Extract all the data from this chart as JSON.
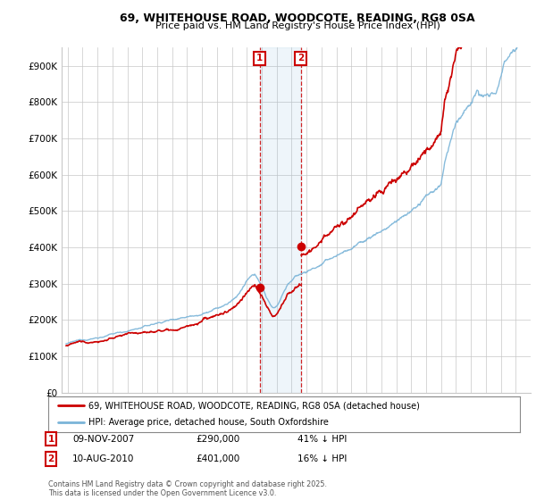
{
  "title_line1": "69, WHITEHOUSE ROAD, WOODCOTE, READING, RG8 0SA",
  "title_line2": "Price paid vs. HM Land Registry's House Price Index (HPI)",
  "ylim": [
    0,
    950000
  ],
  "yticks": [
    0,
    100000,
    200000,
    300000,
    400000,
    500000,
    600000,
    700000,
    800000,
    900000
  ],
  "ytick_labels": [
    "£0",
    "£100K",
    "£200K",
    "£300K",
    "£400K",
    "£500K",
    "£600K",
    "£700K",
    "£800K",
    "£900K"
  ],
  "hpi_color": "#7ab4d8",
  "price_color": "#cc0000",
  "transaction1_date": 2007.86,
  "transaction1_price": 290000,
  "transaction2_date": 2010.61,
  "transaction2_price": 401000,
  "legend_line1": "69, WHITEHOUSE ROAD, WOODCOTE, READING, RG8 0SA (detached house)",
  "legend_line2": "HPI: Average price, detached house, South Oxfordshire",
  "annotation1_label": "1",
  "annotation1_date": "09-NOV-2007",
  "annotation1_price": "£290,000",
  "annotation1_hpi": "41% ↓ HPI",
  "annotation2_label": "2",
  "annotation2_date": "10-AUG-2010",
  "annotation2_price": "£401,000",
  "annotation2_hpi": "16% ↓ HPI",
  "footer": "Contains HM Land Registry data © Crown copyright and database right 2025.\nThis data is licensed under the Open Government Licence v3.0.",
  "background_color": "#ffffff",
  "grid_color": "#c8c8c8",
  "xstart": 1995,
  "xend": 2025.5
}
